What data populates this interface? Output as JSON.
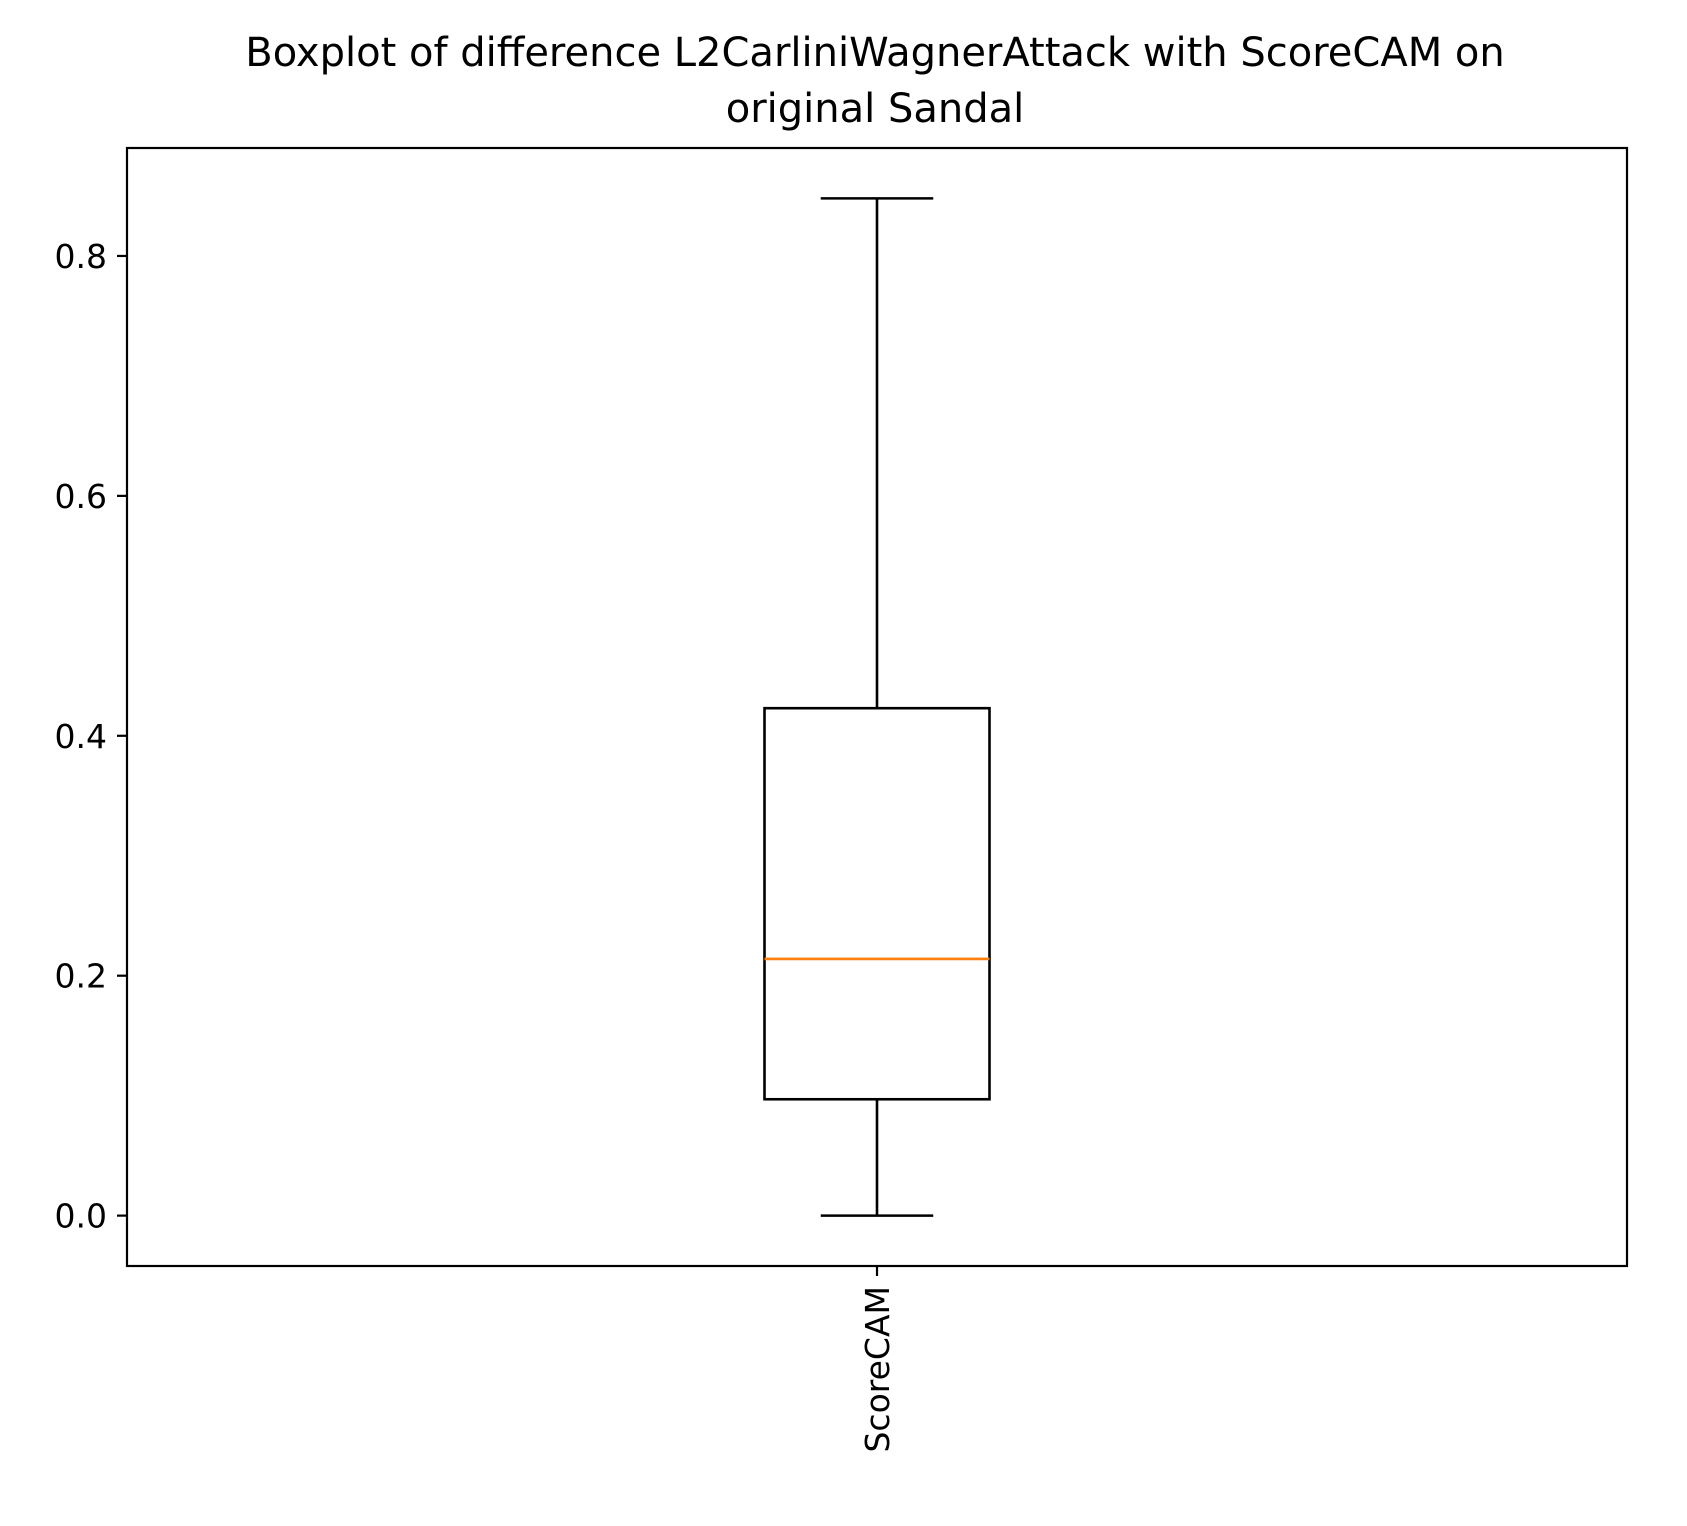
{
  "chart_data": {
    "type": "boxplot",
    "title": "Boxplot of difference L2CarliniWagnerAttack with ScoreCAM on original Sandal",
    "title_lines": [
      "Boxplot of difference L2CarliniWagnerAttack with ScoreCAM on",
      "original Sandal"
    ],
    "xlabel": "",
    "ylabel": "",
    "categories": [
      "ScoreCAM"
    ],
    "boxes": [
      {
        "category": "ScoreCAM",
        "whisker_low": 0.0,
        "q1": 0.097,
        "median": 0.214,
        "q3": 0.423,
        "whisker_high": 0.848
      }
    ],
    "ylim": [
      -0.042,
      0.89
    ],
    "yticks": [
      0.0,
      0.2,
      0.4,
      0.6,
      0.8
    ],
    "ytick_labels": [
      "0.0",
      "0.2",
      "0.4",
      "0.6",
      "0.8"
    ],
    "grid": false,
    "legend": "none",
    "colors": {
      "box": "#000000",
      "median": "#ff7f0e",
      "whisker": "#000000"
    }
  }
}
